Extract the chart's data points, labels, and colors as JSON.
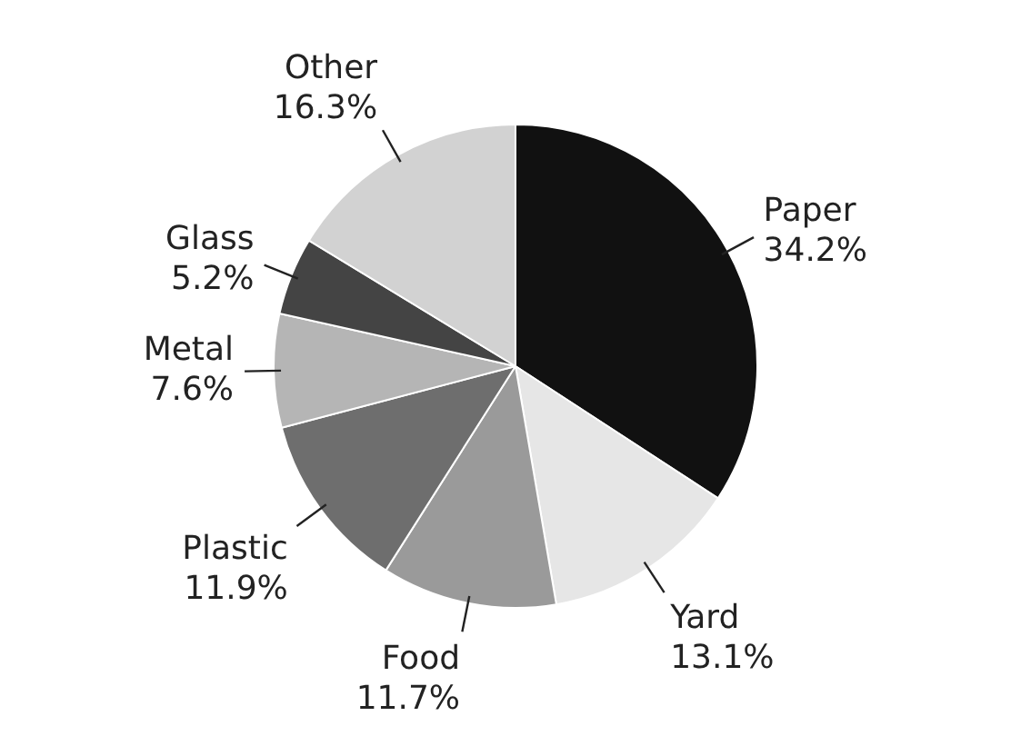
{
  "chart_data": {
    "type": "pie",
    "categories": [
      "Paper",
      "Yard",
      "Food",
      "Plastic",
      "Metal",
      "Glass",
      "Other"
    ],
    "values": [
      34.2,
      13.1,
      11.7,
      11.9,
      7.6,
      5.2,
      16.3
    ],
    "colors": [
      "#111111",
      "#e6e6e6",
      "#9a9a9a",
      "#6e6e6e",
      "#b5b5b5",
      "#444444",
      "#d2d2d2"
    ],
    "value_labels": [
      "34.2%",
      "13.1%",
      "11.7%",
      "11.9%",
      "7.6%",
      "5.2%",
      "16.3%"
    ],
    "legend": false
  }
}
